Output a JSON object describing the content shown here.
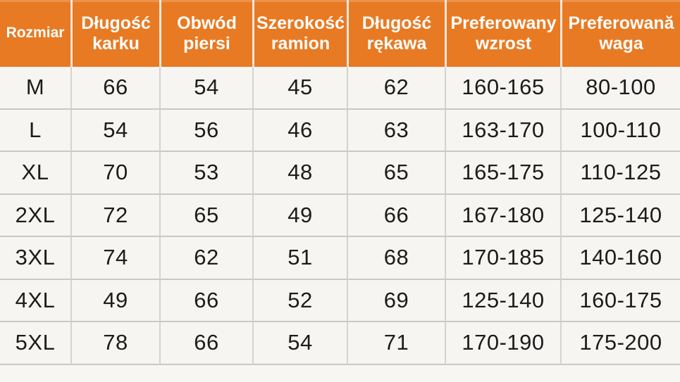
{
  "colors": {
    "header_bg": "#e87a23",
    "header_text": "#ffffff",
    "body_bg": "#f6f5f2",
    "body_text": "#1c1c1c",
    "grid_line": "#c9c8c5"
  },
  "chart_data": {
    "type": "table",
    "title": "",
    "columns": [
      "Rozmiar",
      "Długość karku",
      "Obwód piersi",
      "Szerokość ramion",
      "Długość rękawa",
      "Preferowany wzrost",
      "Preferowană waga"
    ],
    "rows": [
      [
        "M",
        "66",
        "54",
        "45",
        "62",
        "160-165",
        "80-100"
      ],
      [
        "L",
        "54",
        "56",
        "46",
        "63",
        "163-170",
        "100-110"
      ],
      [
        "XL",
        "70",
        "53",
        "48",
        "65",
        "165-175",
        "110-125"
      ],
      [
        "2XL",
        "72",
        "65",
        "49",
        "66",
        "167-180",
        "125-140"
      ],
      [
        "3XL",
        "74",
        "62",
        "51",
        "68",
        "170-185",
        "140-160"
      ],
      [
        "4XL",
        "49",
        "66",
        "52",
        "69",
        "125-140",
        "160-175"
      ],
      [
        "5XL",
        "78",
        "66",
        "54",
        "71",
        "170-190",
        "175-200"
      ]
    ]
  }
}
